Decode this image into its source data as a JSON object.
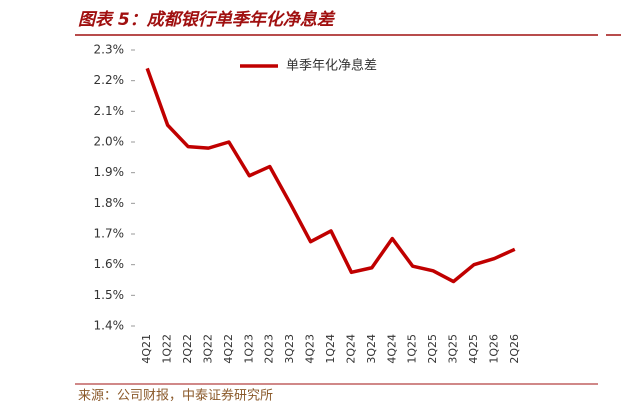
{
  "chart_data": {
    "type": "line",
    "title": "图表 5：成都银行单季年化净息差",
    "source": "来源：公司财报，中泰证券研究所",
    "categories": [
      "4Q21",
      "1Q22",
      "2Q22",
      "3Q22",
      "4Q22",
      "1Q23",
      "2Q23",
      "3Q23",
      "4Q23",
      "1Q24",
      "2Q24",
      "3Q24",
      "4Q24",
      "1Q25",
      "2Q25",
      "3Q25",
      "4Q25",
      "1Q26",
      "2Q26"
    ],
    "series": [
      {
        "name": "单季年化净息差",
        "color": "#c00000",
        "values": [
          2.24,
          2.055,
          1.985,
          1.98,
          2.0,
          1.89,
          1.92,
          1.8,
          1.675,
          1.71,
          1.575,
          1.59,
          1.685,
          1.595,
          1.58,
          1.545,
          1.6,
          1.62,
          1.65
        ]
      }
    ],
    "ylim": [
      1.4,
      2.3
    ],
    "yticks": [
      {
        "value": 1.4,
        "label": "1.4%"
      },
      {
        "value": 1.5,
        "label": "1.5%"
      },
      {
        "value": 1.6,
        "label": "1.6%"
      },
      {
        "value": 1.7,
        "label": "1.7%"
      },
      {
        "value": 1.8,
        "label": "1.8%"
      },
      {
        "value": 1.9,
        "label": "1.9%"
      },
      {
        "value": 2.0,
        "label": "2.0%"
      },
      {
        "value": 2.1,
        "label": "2.1%"
      },
      {
        "value": 2.2,
        "label": "2.2%"
      },
      {
        "value": 2.3,
        "label": "2.3%"
      }
    ],
    "legend": "top"
  }
}
